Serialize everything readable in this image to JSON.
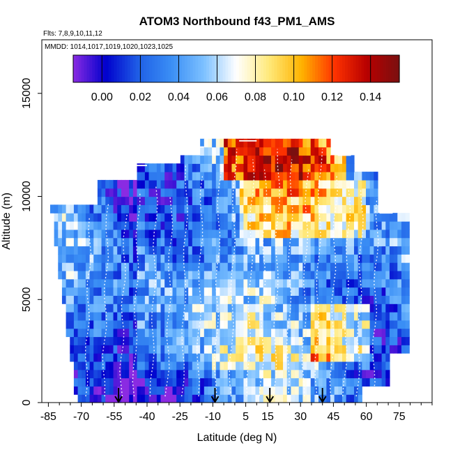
{
  "chart_data": {
    "type": "heatmap",
    "title": "ATOM3 Northbound f43_PM1_AMS",
    "subtitle_flights": "Flts: 7,8,9,10,11,12",
    "subtitle_dates": "MMDD: 1014,1017,1019,1020,1023,1025",
    "xlabel": "Latitude (deg N)",
    "ylabel": "Altitude (m)",
    "xlim": [
      -88,
      90
    ],
    "ylim": [
      0,
      17600
    ],
    "x_ticks": [
      -85,
      -70,
      -55,
      -40,
      -25,
      -10,
      5,
      15,
      30,
      45,
      60,
      75
    ],
    "y_ticks": [
      0,
      5000,
      10000,
      15000
    ],
    "colorbar": {
      "range": [
        -0.015,
        0.155
      ],
      "ticks": [
        0.0,
        0.02,
        0.04,
        0.06,
        0.08,
        0.1,
        0.12,
        0.14
      ],
      "tick_labels": [
        "0.00",
        "0.02",
        "0.04",
        "0.06",
        "0.08",
        "0.10",
        "0.12",
        "0.14"
      ],
      "colors": [
        "#8a2be2",
        "#0000cd",
        "#1f5fe6",
        "#3a8ef5",
        "#7cc0ff",
        "#ffffff",
        "#ffe97a",
        "#ffb300",
        "#ff3300",
        "#b80000",
        "#7a1010"
      ]
    },
    "arrow_latitudes": [
      -53,
      -9,
      16,
      40
    ],
    "grid": false,
    "legend": "top"
  }
}
